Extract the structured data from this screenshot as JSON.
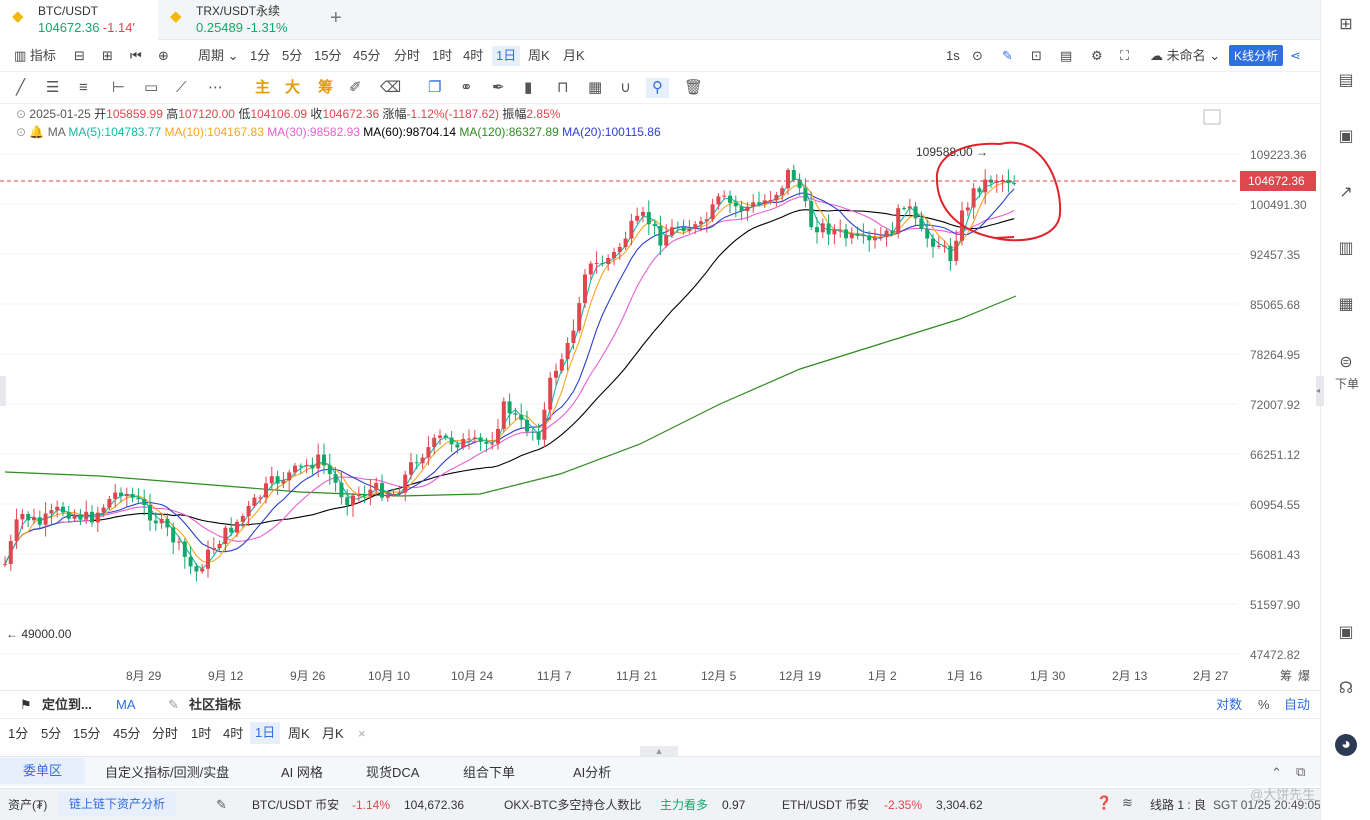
{
  "tabs": [
    {
      "symbol": "BTC/USDT",
      "price": "104672.36",
      "change": "-1.14'"
    },
    {
      "symbol": "TRX/USDT永续",
      "price": "0.25489",
      "change": "-1.31%"
    }
  ],
  "toolbar1": {
    "indicator": "指标",
    "period": "周期",
    "intervals": [
      "1分",
      "5分",
      "15分",
      "45分",
      "分时",
      "1时",
      "4时",
      "1日",
      "周K",
      "月K"
    ],
    "selected_interval": "1日",
    "refresh": "1s",
    "layout_name": "未命名",
    "k_analysis": "K线分析"
  },
  "toolbar2": {
    "labels": [
      "主",
      "大",
      "筹"
    ]
  },
  "info": {
    "date": "2025-01-25",
    "open_label": "开",
    "open": "105859.99",
    "high_label": "高",
    "high": "107120.00",
    "low_label": "低",
    "low": "104106.09",
    "close_label": "收",
    "close": "104672.36",
    "change_label": "涨幅",
    "change": "-1.12%(-1187.62)",
    "amplitude_label": "振幅",
    "amplitude": "2.85%"
  },
  "ma": {
    "label": "MA",
    "ma5": "MA(5):104783.77",
    "ma10": "MA(10):104167.83",
    "ma30": "MA(30):98582.93",
    "ma60": "MA(60):98704.14",
    "ma120": "MA(120):86327.89",
    "ma20": "MA(20):100115.86"
  },
  "colors": {
    "ma5": "#14b8a6",
    "ma10": "#f5a623",
    "ma30": "#e85fd0",
    "ma60": "#000000",
    "ma120": "#2e8b1f",
    "ma20": "#2b3fd1",
    "up": "#e0464e",
    "down": "#14a76c",
    "accent": "#2f6fde"
  },
  "price_axis": {
    "ticks": [
      "109223.36",
      "100491.30",
      "92457.35",
      "85065.68",
      "78264.95",
      "72007.92",
      "66251.12",
      "60954.55",
      "56081.43",
      "51597.90",
      "47472.82"
    ],
    "current": "104672.36"
  },
  "time_axis": [
    "8月 29",
    "9月 12",
    "9月 26",
    "10月 10",
    "10月 24",
    "11月 7",
    "11月 21",
    "12月 5",
    "12月 19",
    "1月 2",
    "1月 16",
    "1月 30",
    "2月 13",
    "2月 27"
  ],
  "time_axis_right": [
    "筹",
    "爆"
  ],
  "annotations": {
    "high": "109588.00 →",
    "low": "← 49000.00"
  },
  "bottom": {
    "locate": "定位到...",
    "ma_tag": "MA",
    "community": "社区指标",
    "log": "对数",
    "percent": "%",
    "auto": "自动",
    "intervals": [
      "1分",
      "5分",
      "15分",
      "45分",
      "分时",
      "1时",
      "4时",
      "1日",
      "周K",
      "月K"
    ],
    "selected_interval": "1日",
    "tabs": [
      "委单区",
      "自定义指标/回测/实盘",
      "AI 网格",
      "现货DCA",
      "组合下单",
      "AI分析"
    ]
  },
  "statusbar": {
    "asset": "资产(₮)",
    "analysis": "链上链下资产分析",
    "t1_sym": "BTC/USDT 币安",
    "t1_chg": "-1.14%",
    "t1_px": "104,672.36",
    "t2_sym": "OKX-BTC多空持仓人数比",
    "t2_tag": "主力看多",
    "t2_val": "0.97",
    "t3_sym": "ETH/USDT 币安",
    "t3_chg": "-2.35%",
    "t3_px": "3,304.62",
    "line": "线路 1 : 良",
    "clock": "SGT 01/25 20:49:05"
  },
  "rightbar": {
    "order": "下单"
  },
  "watermark": "@大饼先生"
}
